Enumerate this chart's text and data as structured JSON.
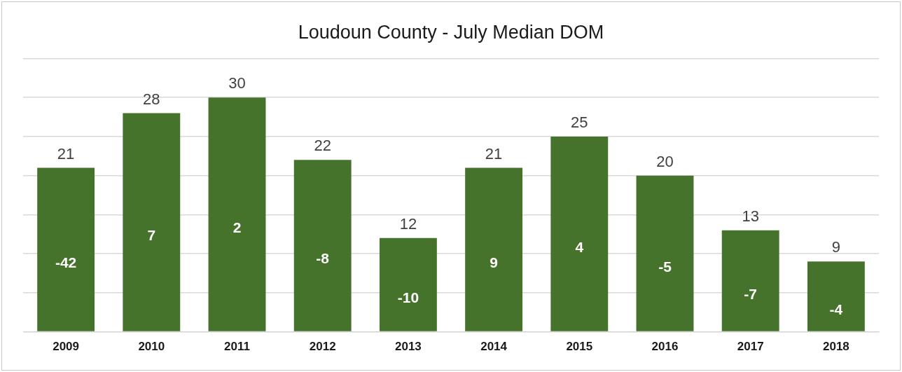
{
  "chart_data": {
    "type": "bar",
    "title": "Loudoun County - July Median DOM",
    "categories": [
      "2009",
      "2010",
      "2011",
      "2012",
      "2013",
      "2014",
      "2015",
      "2016",
      "2017",
      "2018"
    ],
    "values": [
      21,
      28,
      30,
      22,
      12,
      21,
      25,
      20,
      13,
      9
    ],
    "color": "#46732c",
    "data_labels": true,
    "ylim": [
      0,
      35
    ],
    "yticks": [
      {
        "value": 0,
        "label": null
      },
      {
        "value": 5,
        "label": null
      },
      {
        "value": 10,
        "label": null
      },
      {
        "value": 15,
        "label": null
      },
      {
        "value": 20,
        "label": null
      },
      {
        "value": 25,
        "label": null
      },
      {
        "value": 30,
        "label": null
      },
      {
        "value": 35,
        "label": null
      }
    ],
    "grid": "y",
    "tick_labels": "x",
    "legend": false,
    "annotations": [
      "-42",
      "7",
      "2",
      "-8",
      "-10",
      "9",
      "4",
      "-5",
      "-7",
      "-4"
    ]
  }
}
